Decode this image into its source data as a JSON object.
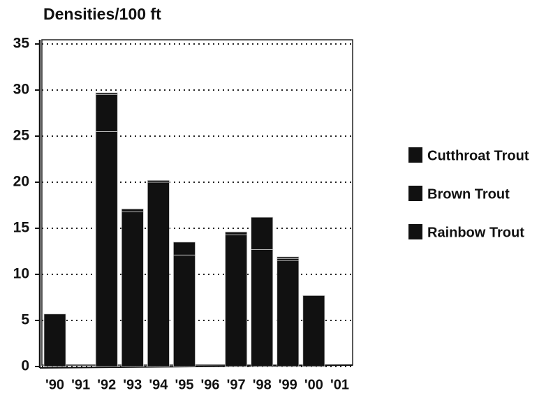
{
  "chart_data": {
    "type": "stacked_bar",
    "title": "Densities/100 ft",
    "categories": [
      "'90",
      "'91",
      "'92",
      "'93",
      "'94",
      "'95",
      "'96",
      "'97",
      "'98",
      "'99",
      "'00",
      "'01"
    ],
    "series": [
      {
        "name": "Rainbow Trout",
        "color": "#111111",
        "values": [
          5.7,
          0,
          25.5,
          16.8,
          20,
          12.1,
          0,
          14.3,
          12.7,
          11.5,
          7.7,
          0
        ]
      },
      {
        "name": "Brown Trout",
        "color": "#111111",
        "values": [
          0,
          0,
          4.0,
          0.3,
          0.2,
          1.4,
          0,
          0.3,
          3.5,
          0.2,
          0,
          0
        ]
      },
      {
        "name": "Cutthroat Trout",
        "color": "#111111",
        "values": [
          0,
          0,
          0.2,
          0,
          0,
          0,
          0,
          0,
          0,
          0.2,
          0,
          0
        ]
      }
    ],
    "ylim": [
      0,
      35
    ],
    "yticks": [
      0,
      5,
      10,
      15,
      20,
      25,
      30,
      35
    ],
    "grid": true
  }
}
